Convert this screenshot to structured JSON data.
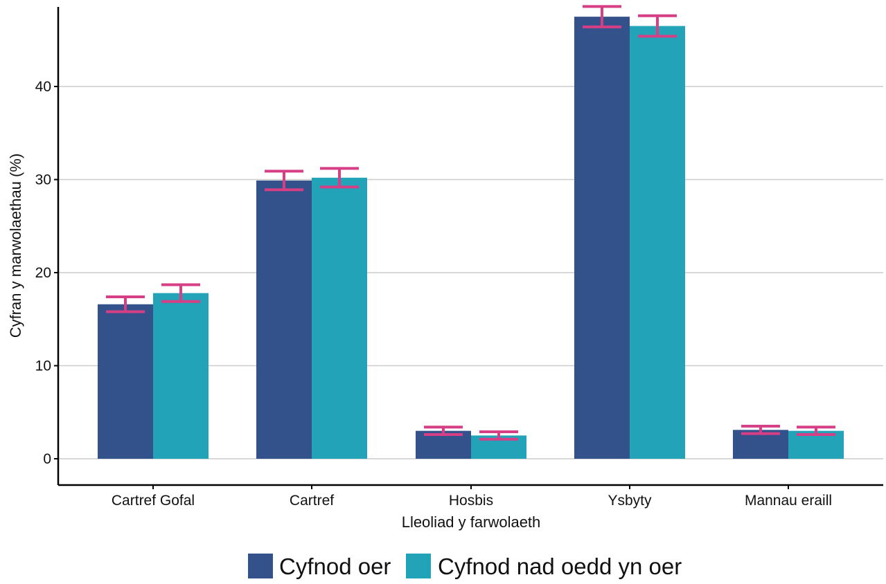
{
  "colors": {
    "series_0": "#33518a",
    "series_1": "#22a3b7",
    "error_bar": "#d63f85",
    "grid": "#cccccc",
    "axis": "#000000"
  },
  "chart_data": {
    "type": "bar",
    "title": "",
    "xlabel": "Lleoliad y farwolaeth",
    "ylabel": "Cyfran y marwolaethau (%)",
    "categories": [
      "Cartref Gofal",
      "Cartref",
      "Hosbis",
      "Ysbyty",
      "Mannau eraill"
    ],
    "ylim": [
      0,
      48.5
    ],
    "yticks": [
      0,
      10,
      20,
      30,
      40
    ],
    "grid": "horizontal",
    "legend_position": "bottom",
    "series": [
      {
        "name": "Cyfnod oer",
        "values": [
          16.6,
          29.9,
          3.0,
          47.5,
          3.1
        ],
        "error_low": [
          15.8,
          28.9,
          2.6,
          46.4,
          2.7
        ],
        "error_high": [
          17.4,
          30.9,
          3.4,
          48.6,
          3.5
        ]
      },
      {
        "name": "Cyfnod nad oedd yn oer",
        "values": [
          17.8,
          30.2,
          2.5,
          46.5,
          3.0
        ],
        "error_low": [
          16.9,
          29.2,
          2.1,
          45.4,
          2.6
        ],
        "error_high": [
          18.7,
          31.2,
          2.9,
          47.6,
          3.4
        ]
      }
    ]
  }
}
